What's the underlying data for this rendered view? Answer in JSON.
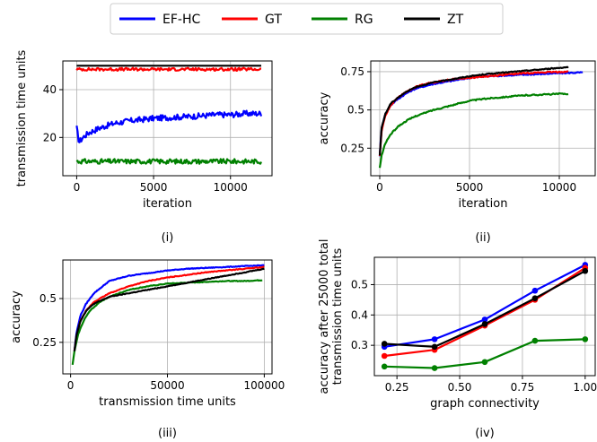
{
  "chart_data": {
    "legend": {
      "placement": "top-center",
      "entries": [
        {
          "name": "EF-HC",
          "color": "#0000ff"
        },
        {
          "name": "GT",
          "color": "#ff0000"
        },
        {
          "name": "RG",
          "color": "#008000"
        },
        {
          "name": "ZT",
          "color": "#000000"
        }
      ]
    },
    "panels": [
      {
        "id": "p1",
        "type": "line",
        "caption": "(i)",
        "xlabel": "iteration",
        "ylabel": "transmission time units",
        "xlim": [
          -900,
          12700
        ],
        "ylim": [
          4,
          52
        ],
        "xticks": [
          0,
          5000,
          10000
        ],
        "yticks": [
          20,
          40
        ],
        "grid": true,
        "series": [
          {
            "name": "EF-HC",
            "color": "#0000ff",
            "noise": 1.2,
            "x": [
              0,
              150,
              400,
              800,
              1500,
              2500,
              3500,
              5000,
              6500,
              8000,
              9000,
              10000,
              11000,
              12000
            ],
            "y": [
              24,
              18,
              20,
              22,
              24,
              26,
              27,
              28,
              28.5,
              29,
              29.5,
              29.5,
              30,
              30
            ]
          },
          {
            "name": "GT",
            "color": "#ff0000",
            "noise": 0.6,
            "x": [
              0,
              3000,
              6000,
              9000,
              12000
            ],
            "y": [
              48.5,
              48.5,
              48.5,
              48.5,
              48.5
            ]
          },
          {
            "name": "RG",
            "color": "#008000",
            "noise": 1.0,
            "x": [
              0,
              3000,
              6000,
              9000,
              12000
            ],
            "y": [
              10,
              10,
              10,
              10,
              10
            ]
          },
          {
            "name": "ZT",
            "color": "#000000",
            "noise": 0.0,
            "x": [
              0,
              12000
            ],
            "y": [
              50,
              50
            ]
          }
        ]
      },
      {
        "id": "p2",
        "type": "line",
        "caption": "(ii)",
        "xlabel": "iteration",
        "ylabel": "accuracy",
        "xlim": [
          -500,
          12000
        ],
        "ylim": [
          0.07,
          0.82
        ],
        "xticks": [
          0,
          5000,
          10000
        ],
        "yticks": [
          0.25,
          0.5,
          0.75
        ],
        "grid": true,
        "series": [
          {
            "name": "EF-HC",
            "color": "#0000ff",
            "noise": 0.004,
            "x": [
              0,
              100,
              300,
              600,
              1000,
              1500,
              2000,
              3000,
              4000,
              5000,
              6000,
              7000,
              8000,
              9000,
              10000,
              11300
            ],
            "y": [
              0.2,
              0.38,
              0.47,
              0.53,
              0.57,
              0.61,
              0.64,
              0.67,
              0.69,
              0.71,
              0.72,
              0.725,
              0.73,
              0.735,
              0.74,
              0.745
            ]
          },
          {
            "name": "GT",
            "color": "#ff0000",
            "noise": 0.004,
            "x": [
              0,
              100,
              300,
              600,
              1000,
              1500,
              2000,
              2500,
              3000,
              4000,
              5000,
              6000,
              7000,
              8000,
              9000,
              10500
            ],
            "y": [
              0.2,
              0.36,
              0.46,
              0.53,
              0.58,
              0.62,
              0.65,
              0.67,
              0.68,
              0.7,
              0.71,
              0.72,
              0.73,
              0.74,
              0.745,
              0.75
            ]
          },
          {
            "name": "RG",
            "color": "#008000",
            "noise": 0.004,
            "x": [
              0,
              100,
              300,
              600,
              1000,
              1500,
              2000,
              3000,
              4000,
              5000,
              6000,
              7000,
              8000,
              9000,
              10000,
              10500
            ],
            "y": [
              0.12,
              0.2,
              0.28,
              0.34,
              0.39,
              0.43,
              0.46,
              0.5,
              0.53,
              0.56,
              0.575,
              0.585,
              0.595,
              0.6,
              0.605,
              0.605
            ]
          },
          {
            "name": "ZT",
            "color": "#000000",
            "noise": 0.003,
            "x": [
              0,
              100,
              300,
              600,
              1000,
              1500,
              2000,
              3000,
              4000,
              5000,
              6000,
              7000,
              8000,
              9000,
              10000,
              10500
            ],
            "y": [
              0.2,
              0.38,
              0.47,
              0.54,
              0.58,
              0.62,
              0.65,
              0.68,
              0.7,
              0.72,
              0.735,
              0.745,
              0.755,
              0.765,
              0.775,
              0.78
            ]
          }
        ]
      },
      {
        "id": "p3",
        "type": "line",
        "caption": "(iii)",
        "xlabel": "transmission time units",
        "ylabel": "accuracy",
        "xlim": [
          -4000,
          104000
        ],
        "ylim": [
          0.07,
          0.72
        ],
        "xticks": [
          0,
          50000,
          100000
        ],
        "yticks": [
          0.25,
          0.5
        ],
        "grid": true,
        "series": [
          {
            "name": "EF-HC",
            "color": "#0000ff",
            "noise": 0.002,
            "x": [
              2000,
              3000,
              5000,
              8000,
              12000,
              20000,
              30000,
              40000,
              50000,
              60000,
              70000,
              80000,
              90000,
              100000
            ],
            "y": [
              0.2,
              0.3,
              0.4,
              0.47,
              0.53,
              0.6,
              0.63,
              0.645,
              0.66,
              0.67,
              0.675,
              0.68,
              0.685,
              0.69
            ]
          },
          {
            "name": "GT",
            "color": "#ff0000",
            "noise": 0.002,
            "x": [
              2000,
              3000,
              5000,
              8000,
              12000,
              20000,
              30000,
              40000,
              50000,
              60000,
              70000,
              80000,
              90000,
              100000
            ],
            "y": [
              0.2,
              0.28,
              0.37,
              0.43,
              0.48,
              0.53,
              0.57,
              0.6,
              0.62,
              0.635,
              0.65,
              0.66,
              0.67,
              0.68
            ]
          },
          {
            "name": "RG",
            "color": "#008000",
            "noise": 0.002,
            "x": [
              1000,
              2000,
              4000,
              7000,
              10000,
              15000,
              20000,
              30000,
              40000,
              50000,
              60000,
              70000,
              80000,
              90000,
              99000
            ],
            "y": [
              0.12,
              0.2,
              0.3,
              0.38,
              0.43,
              0.48,
              0.51,
              0.55,
              0.57,
              0.585,
              0.59,
              0.595,
              0.6,
              0.6,
              0.605
            ]
          },
          {
            "name": "ZT",
            "color": "#000000",
            "noise": 0.002,
            "x": [
              2000,
              3000,
              5000,
              8000,
              12000,
              20000,
              30000,
              40000,
              50000,
              60000,
              70000,
              80000,
              90000,
              100000
            ],
            "y": [
              0.2,
              0.29,
              0.37,
              0.43,
              0.47,
              0.51,
              0.53,
              0.55,
              0.57,
              0.59,
              0.61,
              0.63,
              0.65,
              0.67
            ]
          }
        ]
      },
      {
        "id": "p4",
        "type": "line",
        "markers": true,
        "caption": "(iv)",
        "xlabel": "graph connectivity",
        "ylabel": "accuracy after 25000 total transmission time units",
        "ylabel_lines": [
          "accuracy after  25000 total",
          "transmission time units"
        ],
        "xlim": [
          0.16,
          1.04
        ],
        "ylim": [
          0.2,
          0.59
        ],
        "xticks": [
          0.25,
          0.5,
          0.75,
          1.0
        ],
        "xticklabels": [
          "0.25",
          "0.50",
          "0.75",
          "1.00"
        ],
        "yticks": [
          0.3,
          0.4,
          0.5
        ],
        "grid": true,
        "series": [
          {
            "name": "EF-HC",
            "color": "#0000ff",
            "x": [
              0.2,
              0.4,
              0.6,
              0.8,
              1.0
            ],
            "y": [
              0.295,
              0.32,
              0.385,
              0.48,
              0.565
            ]
          },
          {
            "name": "GT",
            "color": "#ff0000",
            "x": [
              0.2,
              0.4,
              0.6,
              0.8,
              1.0
            ],
            "y": [
              0.265,
              0.285,
              0.365,
              0.45,
              0.555
            ]
          },
          {
            "name": "RG",
            "color": "#008000",
            "x": [
              0.2,
              0.4,
              0.6,
              0.8,
              1.0
            ],
            "y": [
              0.23,
              0.225,
              0.245,
              0.315,
              0.32
            ]
          },
          {
            "name": "ZT",
            "color": "#000000",
            "x": [
              0.2,
              0.4,
              0.6,
              0.8,
              1.0
            ],
            "y": [
              0.305,
              0.295,
              0.37,
              0.455,
              0.545
            ]
          }
        ]
      }
    ]
  }
}
